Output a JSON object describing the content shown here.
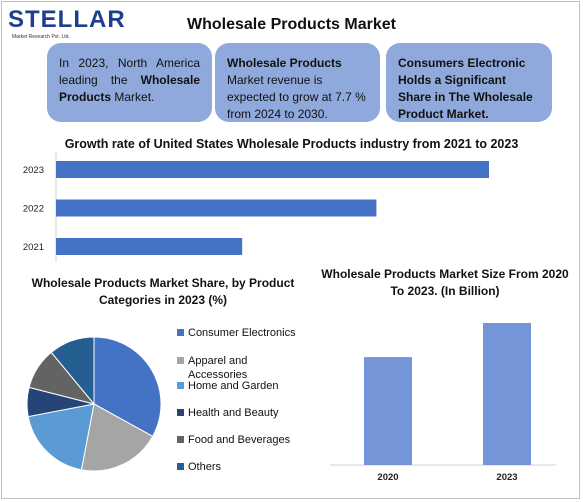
{
  "logo": {
    "word": "STELLAR",
    "subtitle": "Market Research Pvt. Ltd."
  },
  "title": "Wholesale Products Market",
  "callouts": {
    "c1_pre": "In 2023, North America leading the ",
    "c1_bold": "Wholesale Products",
    "c1_post": " Market.",
    "c2_bold": "Wholesale Products",
    "c2_post": " Market revenue is expected to grow at 7.7 % from 2024 to 2030.",
    "c3": "Consumers Electronic Holds a Significant Share in The Wholesale Product Market."
  },
  "chart_data": [
    {
      "type": "bar",
      "orientation": "horizontal",
      "title": "Growth rate of United States Wholesale Products industry from 2021 to 2023",
      "categories": [
        "2023",
        "2022",
        "2021"
      ],
      "values": [
        100,
        74,
        43
      ],
      "color": "#4472c4"
    },
    {
      "type": "pie",
      "title": "Wholesale Products Market Share, by Product Categories in 2023 (%)",
      "labels": [
        "Consumer Electronics",
        "Apparel and Accessories",
        "Home and Garden",
        "Health and Beauty",
        "Food and Beverages",
        "Others"
      ],
      "values": [
        33,
        20,
        19,
        7,
        10,
        11
      ],
      "colors": [
        "#4472c4",
        "#a5a5a5",
        "#5b9bd5",
        "#264478",
        "#636363",
        "#255e91"
      ],
      "legend_position": "right"
    },
    {
      "type": "bar",
      "title": "Wholesale Products Market Size From 2020 To 2023. (In Billion)",
      "categories": [
        "2020",
        "2023"
      ],
      "values": [
        76,
        100
      ],
      "color": "#7496d8"
    }
  ]
}
